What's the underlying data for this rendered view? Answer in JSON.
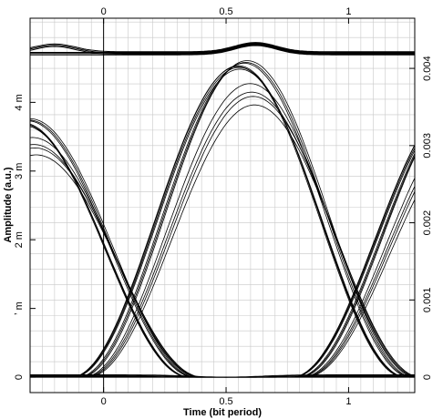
{
  "chart_data": {
    "type": "line",
    "title": "",
    "xlabel": "Time (bit period)",
    "ylabel": "Amplitude (a.u.)",
    "xlim": [
      -0.3,
      1.27
    ],
    "ylim": [
      -0.0002,
      0.00465
    ],
    "grid": true,
    "x_ticks": [
      {
        "value": 0,
        "label": "0"
      },
      {
        "value": 0.5,
        "label": "0.5"
      },
      {
        "value": 1,
        "label": "1"
      }
    ],
    "x_top_ticks": [
      {
        "value": 0,
        "label": "0"
      },
      {
        "value": 0.5,
        "label": "0.5"
      },
      {
        "value": 1,
        "label": "1"
      }
    ],
    "y_left_ticks": [
      {
        "value": 0,
        "label": "0"
      },
      {
        "value": 0.00089,
        "label": "ʼ m"
      },
      {
        "value": 0.00178,
        "label": "2 m"
      },
      {
        "value": 0.00267,
        "label": "3 m"
      },
      {
        "value": 0.00356,
        "label": "4 m"
      }
    ],
    "y_right_ticks": [
      {
        "value": 0,
        "label": "0"
      },
      {
        "value": 0.001,
        "label": "0.001"
      },
      {
        "value": 0.002,
        "label": "0.002"
      },
      {
        "value": 0.003,
        "label": "0.003"
      },
      {
        "value": 0.004,
        "label": "0.004"
      }
    ],
    "series": [
      {
        "center": 0.0,
        "peak": 0.00366
      },
      {
        "center": 0.01,
        "peak": 0.00364
      },
      {
        "center": -0.01,
        "peak": 0.00365
      },
      {
        "center": 0.02,
        "peak": 0.00362
      },
      {
        "center": 0.1,
        "peak": 0.0037
      },
      {
        "center": 0.12,
        "peak": 0.00372
      },
      {
        "center": 0.08,
        "peak": 0.00369
      },
      {
        "center": 0.18,
        "peak": 0.00335
      },
      {
        "center": 0.2,
        "peak": 0.0033
      },
      {
        "center": 0.16,
        "peak": 0.00345
      },
      {
        "center": 0.22,
        "peak": 0.0032
      }
    ],
    "colors": {
      "trace": "#000000",
      "grid": "#c8c8c8",
      "frame": "#000000"
    }
  }
}
